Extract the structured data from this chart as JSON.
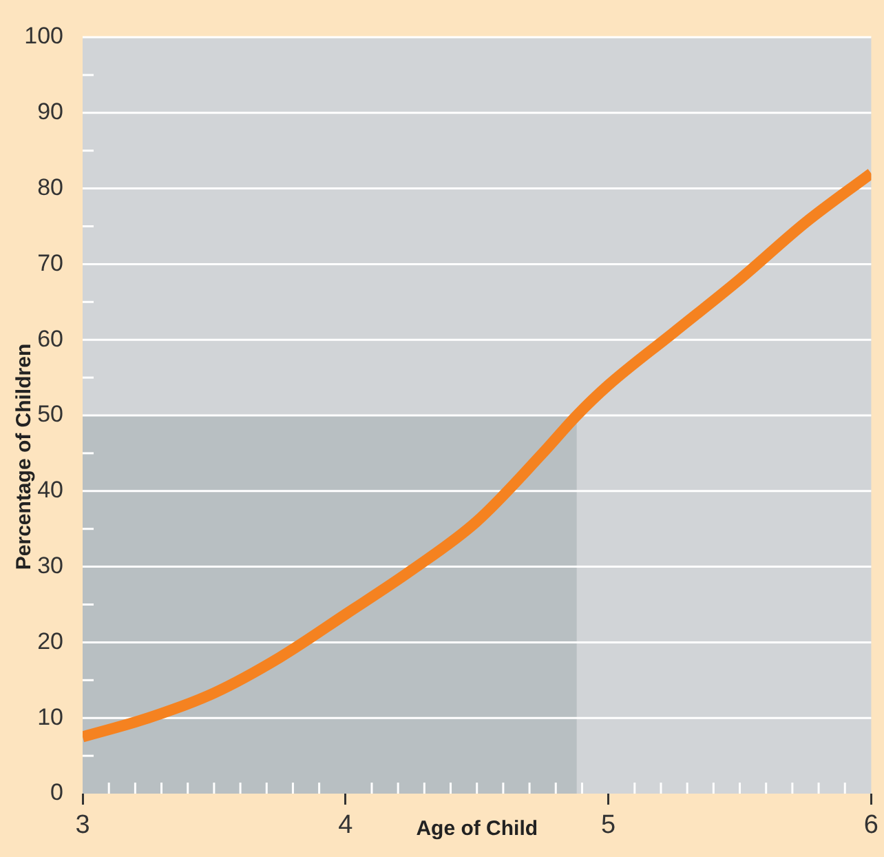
{
  "chart_data": {
    "type": "line",
    "xlabel": "Age of Child",
    "ylabel": "Percentage of Children",
    "xlim": [
      3,
      6
    ],
    "xticks": [
      3,
      {
        "value": 3.1,
        "label": null
      },
      {
        "value": 3.2,
        "label": null
      },
      {
        "value": 3.3,
        "label": null
      },
      {
        "value": 3.4,
        "label": null
      },
      {
        "value": 3.5,
        "label": null
      },
      {
        "value": 3.6,
        "label": null
      },
      {
        "value": 3.7,
        "label": null
      },
      {
        "value": 3.8,
        "label": null
      },
      {
        "value": 3.9,
        "label": null
      },
      4,
      {
        "value": 4.1,
        "label": null
      },
      {
        "value": 4.2,
        "label": null
      },
      {
        "value": 4.3,
        "label": null
      },
      {
        "value": 4.4,
        "label": null
      },
      {
        "value": 4.5,
        "label": null
      },
      {
        "value": 4.6,
        "label": null
      },
      {
        "value": 4.7,
        "label": null
      },
      {
        "value": 4.8,
        "label": null
      },
      {
        "value": 4.9,
        "label": null
      },
      5,
      {
        "value": 5.1,
        "label": null
      },
      {
        "value": 5.2,
        "label": null
      },
      {
        "value": 5.3,
        "label": null
      },
      {
        "value": 5.4,
        "label": null
      },
      {
        "value": 5.5,
        "label": null
      },
      {
        "value": 5.6,
        "label": null
      },
      {
        "value": 5.7,
        "label": null
      },
      {
        "value": 5.8,
        "label": null
      },
      {
        "value": 5.9,
        "label": null
      },
      6
    ],
    "ylim": [
      0,
      100
    ],
    "yticks": [
      0,
      {
        "value": 5,
        "label": null
      },
      10,
      {
        "value": 15,
        "label": null
      },
      20,
      {
        "value": 25,
        "label": null
      },
      30,
      {
        "value": 35,
        "label": null
      },
      40,
      {
        "value": 45,
        "label": null
      },
      50,
      {
        "value": 55,
        "label": null
      },
      60,
      {
        "value": 65,
        "label": null
      },
      70,
      {
        "value": 75,
        "label": null
      },
      80,
      {
        "value": 85,
        "label": null
      },
      90,
      {
        "value": 95,
        "label": null
      },
      100
    ],
    "grid": "y",
    "legend": false,
    "marker": "none",
    "line_style": "solid",
    "series": [
      {
        "type": "area",
        "color": "#b8bfc2",
        "x": [
          3,
          4.88
        ],
        "values": [
          50,
          50
        ]
      },
      {
        "type": "line",
        "color": "#f58220",
        "x": [
          3,
          3.25,
          3.5,
          3.75,
          4,
          4.25,
          4.5,
          4.75,
          4.88,
          5,
          5.25,
          5.5,
          5.75,
          6
        ],
        "values": [
          7.5,
          10,
          13.3,
          18,
          23.7,
          29.5,
          36,
          45,
          50,
          54,
          61,
          68,
          75.5,
          82
        ]
      }
    ]
  }
}
